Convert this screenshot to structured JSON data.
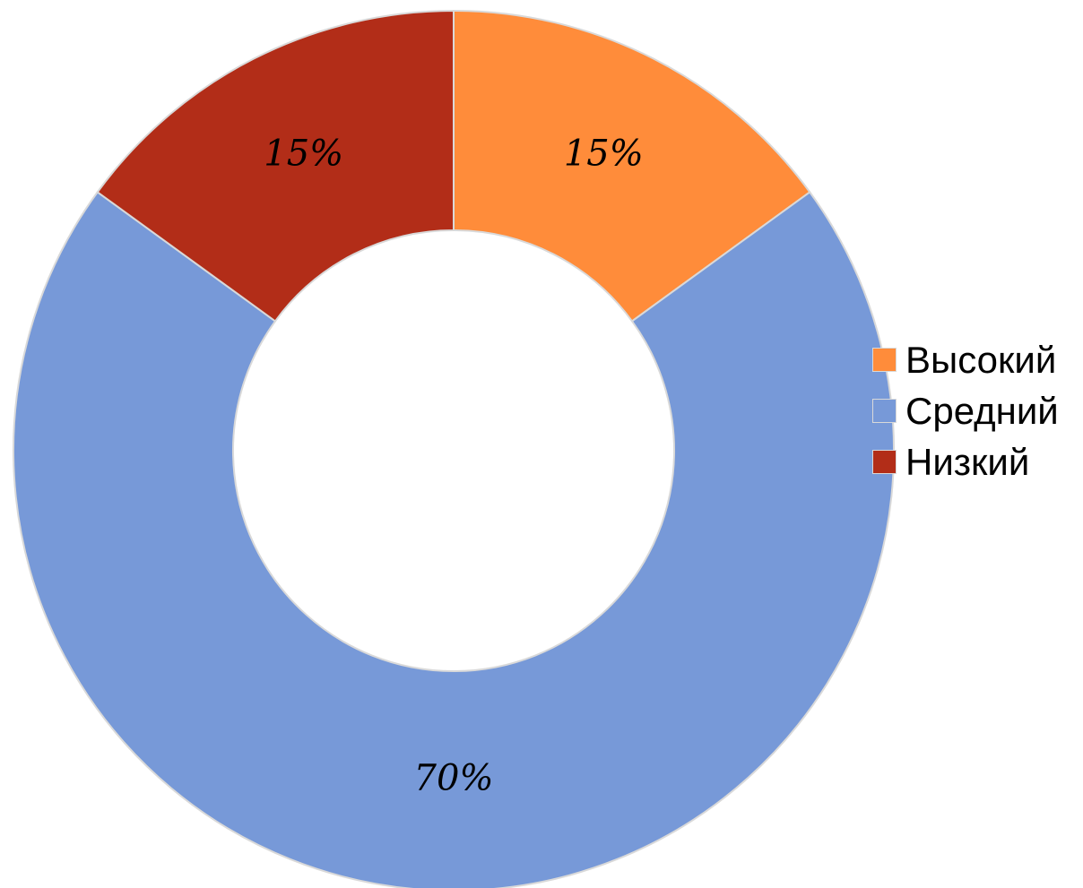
{
  "chart_data": {
    "type": "pie",
    "variant": "donut",
    "title": "",
    "categories": [
      "Высокий",
      "Средний",
      "Низкий"
    ],
    "values": [
      15,
      70,
      15
    ],
    "labels": [
      "15%",
      "70%",
      "15%"
    ],
    "colors": [
      "#FF8C3A",
      "#7799D8",
      "#B22D18"
    ],
    "legend_position": "right"
  },
  "legend": {
    "items": [
      {
        "label": "Высокий",
        "color": "#FF8C3A"
      },
      {
        "label": "Средний",
        "color": "#7799D8"
      },
      {
        "label": "Низкий",
        "color": "#B22D18"
      }
    ]
  }
}
